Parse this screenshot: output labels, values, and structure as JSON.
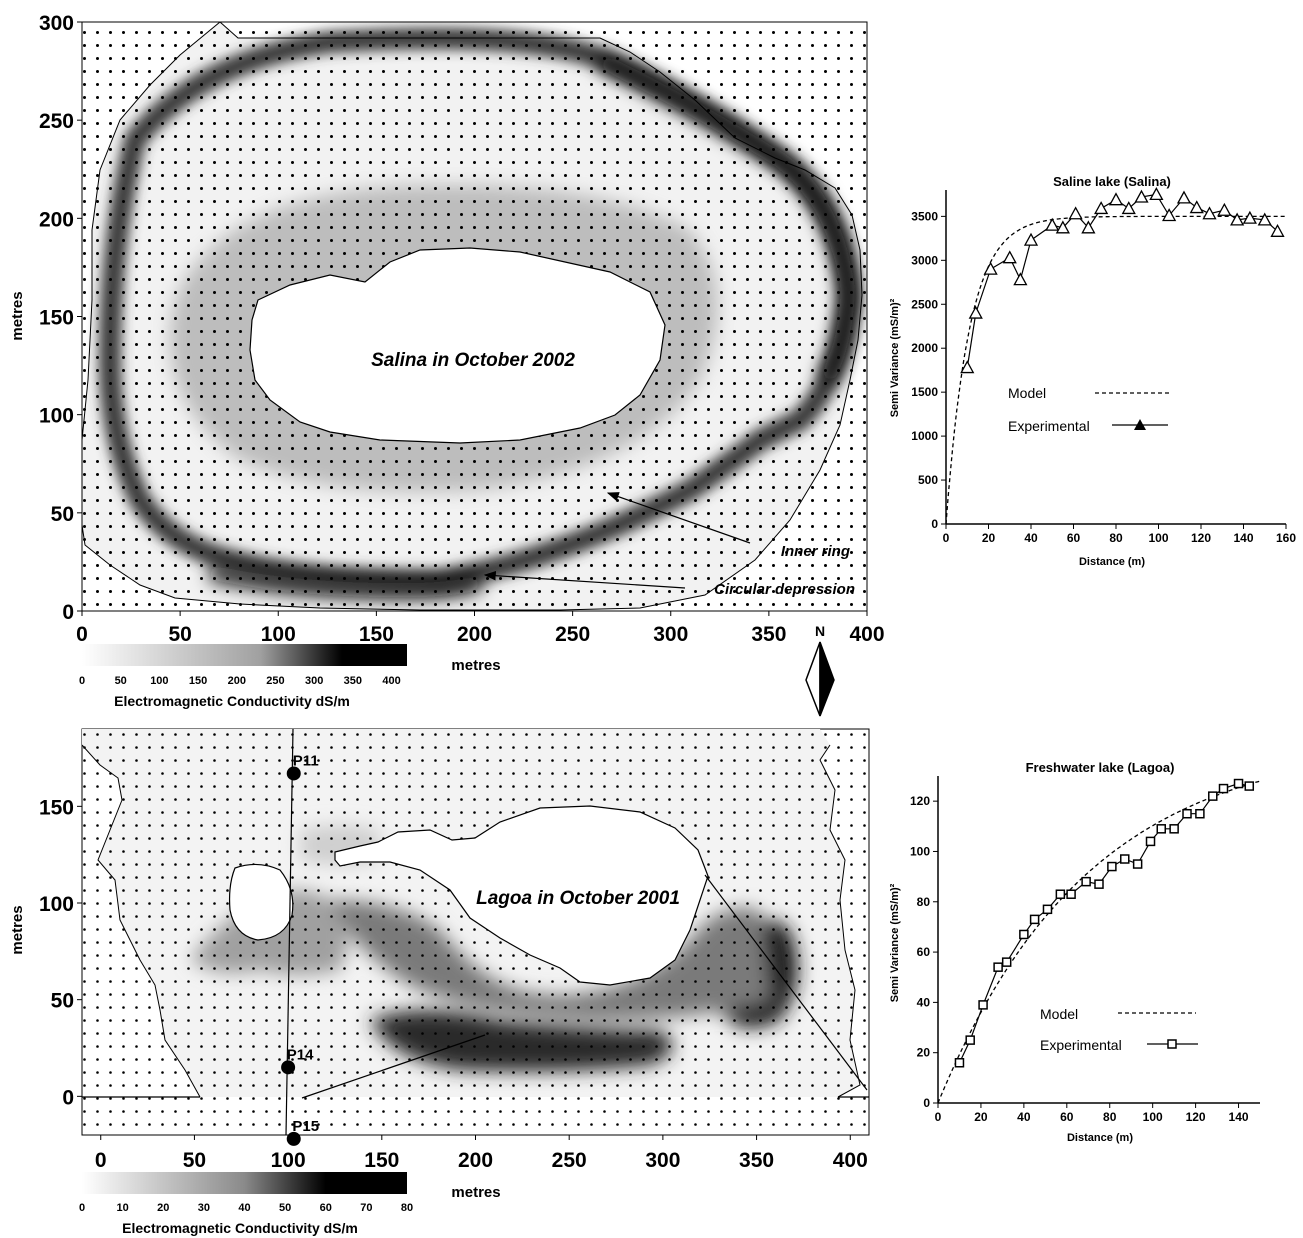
{
  "chart_data": [
    {
      "type": "heatmap",
      "title": "Salina in October 2002",
      "xlabel": "metres",
      "ylabel": "metres",
      "xlim": [
        0,
        400
      ],
      "ylim": [
        0,
        300
      ],
      "xticks": [
        "0",
        "50",
        "100",
        "150",
        "200",
        "250",
        "300",
        "350",
        "400"
      ],
      "yticks": [
        "0",
        "50",
        "100",
        "150",
        "200",
        "250",
        "300"
      ],
      "annotations": [
        "Inner ring",
        "Circular depression"
      ],
      "colorbar": {
        "label": "Electromagnetic Conductivity dS/m",
        "ticks": [
          "0",
          "50",
          "100",
          "150",
          "200",
          "250",
          "300",
          "350",
          "400"
        ],
        "range": [
          0,
          420
        ]
      }
    },
    {
      "type": "heatmap",
      "title": "Lagoa in October 2001",
      "xlabel": "metres",
      "ylabel": "metres",
      "xlim": [
        -10,
        410
      ],
      "ylim": [
        -20,
        190
      ],
      "xticks": [
        "0",
        "50",
        "100",
        "150",
        "200",
        "250",
        "300",
        "350",
        "400"
      ],
      "yticks": [
        "0",
        "50",
        "100",
        "150"
      ],
      "points": [
        {
          "label": "P11",
          "x": 103,
          "y": 167
        },
        {
          "label": "P14",
          "x": 100,
          "y": 15
        },
        {
          "label": "P15",
          "x": 103,
          "y": -22
        }
      ],
      "colorbar": {
        "label": "Electromagnetic Conductivity dS/m",
        "ticks": [
          "0",
          "10",
          "20",
          "30",
          "40",
          "50",
          "60",
          "70",
          "80"
        ],
        "range": [
          0,
          80
        ]
      }
    },
    {
      "type": "line",
      "title": "Saline lake (Salina)",
      "xlabel": "Distance (m)",
      "ylabel": "Semi Variance (mS/m)²",
      "xlim": [
        0,
        160
      ],
      "ylim": [
        0,
        3800
      ],
      "xticks": [
        "0",
        "20",
        "40",
        "60",
        "80",
        "100",
        "120",
        "140",
        "160"
      ],
      "yticks": [
        "0",
        "500",
        "1000",
        "1500",
        "2000",
        "2500",
        "3000",
        "3500"
      ],
      "legend": [
        "Model",
        "Experimental"
      ],
      "series": [
        {
          "name": "Model",
          "model": {
            "type": "exponential",
            "sill": 3500,
            "range": 11
          }
        },
        {
          "name": "Experimental",
          "x": [
            10,
            14,
            21,
            30,
            35,
            40,
            50,
            55,
            61,
            67,
            73,
            80,
            86,
            92,
            99,
            105,
            112,
            118,
            124,
            131,
            137,
            143,
            150,
            156
          ],
          "y": [
            1780,
            2400,
            2900,
            3030,
            2780,
            3230,
            3400,
            3370,
            3530,
            3370,
            3590,
            3690,
            3590,
            3720,
            3750,
            3510,
            3710,
            3600,
            3530,
            3570,
            3460,
            3480,
            3460,
            3330
          ]
        }
      ]
    },
    {
      "type": "line",
      "title": "Freshwater lake (Lagoa)",
      "xlabel": "Distance (m)",
      "ylabel": "Semi Variance (mS/m)²",
      "xlim": [
        0,
        150
      ],
      "ylim": [
        0,
        130
      ],
      "xticks": [
        "0",
        "20",
        "40",
        "60",
        "80",
        "100",
        "120",
        "140"
      ],
      "yticks": [
        "0",
        "20",
        "40",
        "60",
        "80",
        "100",
        "120"
      ],
      "legend": [
        "Model",
        "Experimental"
      ],
      "series": [
        {
          "name": "Model",
          "model": {
            "type": "exponential",
            "sill": 145,
            "range": 70
          }
        },
        {
          "name": "Experimental",
          "x": [
            10,
            15,
            21,
            28,
            32,
            40,
            45,
            51,
            57,
            62,
            69,
            75,
            81,
            87,
            93,
            99,
            104,
            110,
            116,
            122,
            128,
            133,
            140,
            145
          ],
          "y": [
            16,
            25,
            39,
            54,
            56,
            67,
            73,
            77,
            83,
            83,
            88,
            87,
            94,
            97,
            95,
            104,
            109,
            109,
            115,
            115,
            122,
            125,
            127,
            126
          ]
        }
      ]
    }
  ],
  "north_label": "N"
}
